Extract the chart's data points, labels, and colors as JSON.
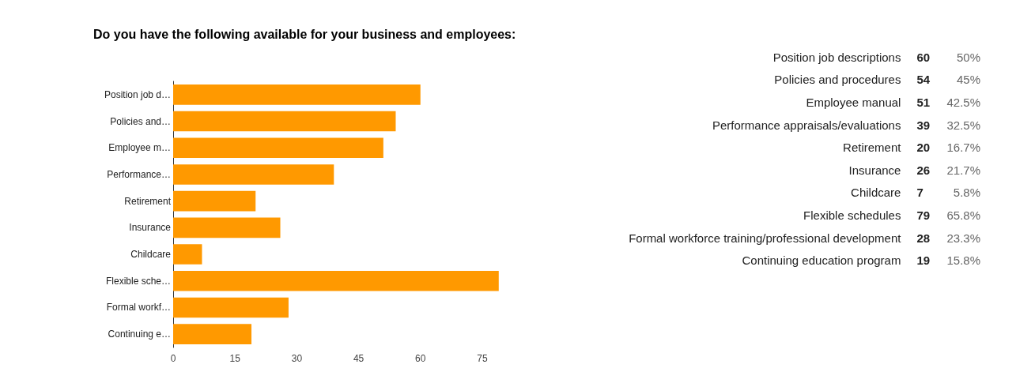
{
  "chart_data": [
    {
      "type": "bar",
      "orientation": "horizontal",
      "title": "Do you have the following available for your business and employees:",
      "categories": [
        "Position job d…",
        "Policies and…",
        "Employee m…",
        "Performance…",
        "Retirement",
        "Insurance",
        "Childcare",
        "Flexible sche…",
        "Formal workf…",
        "Continuing e…"
      ],
      "values": [
        60,
        54,
        51,
        39,
        20,
        26,
        7,
        79,
        28,
        19
      ],
      "color": "#ff9900",
      "xlim": [
        0,
        80
      ],
      "xticks": [
        0,
        15,
        30,
        45,
        60,
        75
      ]
    },
    {
      "type": "other",
      "annotations": [
        "Position job descriptions",
        "60",
        "50%",
        "Policies and procedures",
        "54",
        "45%",
        "Employee manual",
        "51",
        "42.5%",
        "Performance appraisals/evaluations",
        "39",
        "32.5%",
        "Retirement",
        "20",
        "16.7%",
        "Insurance",
        "26",
        "21.7%",
        "Childcare",
        "7",
        "5.8%",
        "Flexible schedules",
        "79",
        "65.8%",
        "Formal workforce training/professional development",
        "28",
        "23.3%",
        "Continuing education program",
        "19",
        "15.8%"
      ]
    }
  ]
}
